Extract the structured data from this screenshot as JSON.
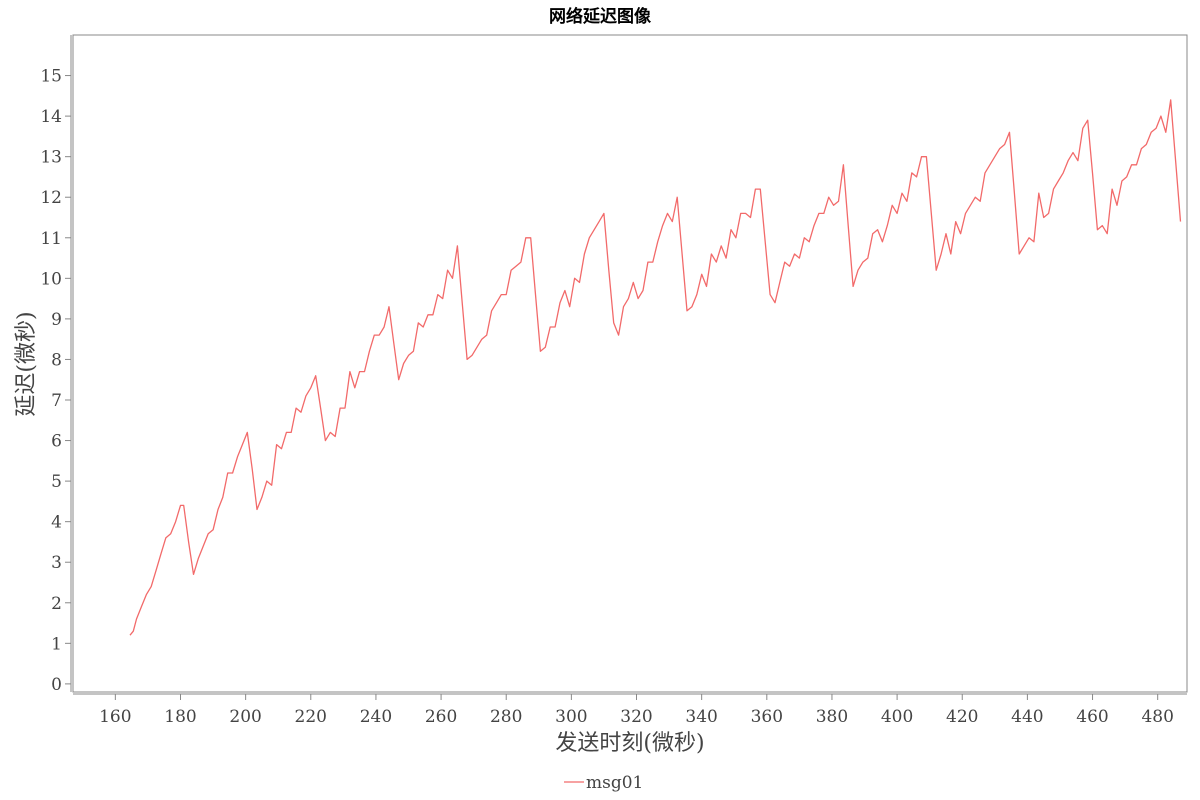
{
  "chart_data": {
    "type": "line",
    "title": "网络延迟图像",
    "xlabel": "发送时刻(微秒)",
    "ylabel": "延迟(微秒)",
    "xlim": [
      147,
      489
    ],
    "ylim": [
      -0.2,
      16.0
    ],
    "xticks": [
      160,
      180,
      200,
      220,
      240,
      260,
      280,
      300,
      320,
      340,
      360,
      380,
      400,
      420,
      440,
      460,
      480
    ],
    "yticks": [
      0,
      1,
      2,
      3,
      4,
      5,
      6,
      7,
      8,
      9,
      10,
      11,
      12,
      13,
      14,
      15
    ],
    "grid": false,
    "legend_position": "bottom-center",
    "series": [
      {
        "name": "msg01",
        "color": "#f26a6a",
        "points": [
          [
            164.5,
            1.2
          ],
          [
            165.5,
            1.3
          ],
          [
            166.5,
            1.6
          ],
          [
            168,
            1.9
          ],
          [
            169.5,
            2.2
          ],
          [
            171,
            2.4
          ],
          [
            172.5,
            2.8
          ],
          [
            174,
            3.2
          ],
          [
            175.5,
            3.6
          ],
          [
            177,
            3.7
          ],
          [
            178.5,
            4.0
          ],
          [
            180,
            4.4
          ],
          [
            181,
            4.4
          ],
          [
            182.5,
            3.5
          ],
          [
            184,
            2.7
          ],
          [
            185.5,
            3.1
          ],
          [
            187,
            3.4
          ],
          [
            188.5,
            3.7
          ],
          [
            190,
            3.8
          ],
          [
            191.5,
            4.3
          ],
          [
            193,
            4.6
          ],
          [
            194.5,
            5.2
          ],
          [
            196,
            5.2
          ],
          [
            197.5,
            5.6
          ],
          [
            199,
            5.9
          ],
          [
            200.5,
            6.2
          ],
          [
            202,
            5.3
          ],
          [
            203.5,
            4.3
          ],
          [
            205,
            4.6
          ],
          [
            206.5,
            5.0
          ],
          [
            208,
            4.9
          ],
          [
            209.5,
            5.9
          ],
          [
            211,
            5.8
          ],
          [
            212.5,
            6.2
          ],
          [
            214,
            6.2
          ],
          [
            215.5,
            6.8
          ],
          [
            217,
            6.7
          ],
          [
            218.5,
            7.1
          ],
          [
            220,
            7.3
          ],
          [
            221.5,
            7.6
          ],
          [
            223,
            6.8
          ],
          [
            224.5,
            6.0
          ],
          [
            226,
            6.2
          ],
          [
            227.5,
            6.1
          ],
          [
            229,
            6.8
          ],
          [
            230.5,
            6.8
          ],
          [
            232,
            7.7
          ],
          [
            233.5,
            7.3
          ],
          [
            235,
            7.7
          ],
          [
            236.5,
            7.7
          ],
          [
            238,
            8.2
          ],
          [
            239.5,
            8.6
          ],
          [
            241,
            8.6
          ],
          [
            242.5,
            8.8
          ],
          [
            244,
            9.3
          ],
          [
            245.5,
            8.4
          ],
          [
            247,
            7.5
          ],
          [
            248.5,
            7.9
          ],
          [
            250,
            8.1
          ],
          [
            251.5,
            8.2
          ],
          [
            253,
            8.9
          ],
          [
            254.5,
            8.8
          ],
          [
            256,
            9.1
          ],
          [
            257.5,
            9.1
          ],
          [
            259,
            9.6
          ],
          [
            260.5,
            9.5
          ],
          [
            262,
            10.2
          ],
          [
            263.5,
            10.0
          ],
          [
            265,
            10.8
          ],
          [
            266.5,
            9.4
          ],
          [
            268,
            8.0
          ],
          [
            269.5,
            8.1
          ],
          [
            271,
            8.3
          ],
          [
            272.5,
            8.5
          ],
          [
            274,
            8.6
          ],
          [
            275.5,
            9.2
          ],
          [
            277,
            9.4
          ],
          [
            278.5,
            9.6
          ],
          [
            280,
            9.6
          ],
          [
            281.5,
            10.2
          ],
          [
            283,
            10.3
          ],
          [
            284.5,
            10.4
          ],
          [
            286,
            11.0
          ],
          [
            287.5,
            11.0
          ],
          [
            289,
            9.6
          ],
          [
            290.5,
            8.2
          ],
          [
            292,
            8.3
          ],
          [
            293.5,
            8.8
          ],
          [
            295,
            8.8
          ],
          [
            296.5,
            9.4
          ],
          [
            298,
            9.7
          ],
          [
            299.5,
            9.3
          ],
          [
            301,
            10.0
          ],
          [
            302.5,
            9.9
          ],
          [
            304,
            10.6
          ],
          [
            305.5,
            11.0
          ],
          [
            307,
            11.2
          ],
          [
            308.5,
            11.4
          ],
          [
            310,
            11.6
          ],
          [
            311.5,
            10.2
          ],
          [
            313,
            8.9
          ],
          [
            314.5,
            8.6
          ],
          [
            316,
            9.3
          ],
          [
            317.5,
            9.5
          ],
          [
            319,
            9.9
          ],
          [
            320.5,
            9.5
          ],
          [
            322,
            9.7
          ],
          [
            323.5,
            10.4
          ],
          [
            325,
            10.4
          ],
          [
            326.5,
            10.9
          ],
          [
            328,
            11.3
          ],
          [
            329.5,
            11.6
          ],
          [
            331,
            11.4
          ],
          [
            332.5,
            12.0
          ],
          [
            334,
            10.6
          ],
          [
            335.5,
            9.2
          ],
          [
            337,
            9.3
          ],
          [
            338.5,
            9.6
          ],
          [
            340,
            10.1
          ],
          [
            341.5,
            9.8
          ],
          [
            343,
            10.6
          ],
          [
            344.5,
            10.4
          ],
          [
            346,
            10.8
          ],
          [
            347.5,
            10.5
          ],
          [
            349,
            11.2
          ],
          [
            350.5,
            11.0
          ],
          [
            352,
            11.6
          ],
          [
            353.5,
            11.6
          ],
          [
            355,
            11.5
          ],
          [
            356.5,
            12.2
          ],
          [
            358,
            12.2
          ],
          [
            359.5,
            10.9
          ],
          [
            361,
            9.6
          ],
          [
            362.5,
            9.4
          ],
          [
            364,
            9.9
          ],
          [
            365.5,
            10.4
          ],
          [
            367,
            10.3
          ],
          [
            368.5,
            10.6
          ],
          [
            370,
            10.5
          ],
          [
            371.5,
            11.0
          ],
          [
            373,
            10.9
          ],
          [
            374.5,
            11.3
          ],
          [
            376,
            11.6
          ],
          [
            377.5,
            11.6
          ],
          [
            379,
            12.0
          ],
          [
            380.5,
            11.8
          ],
          [
            382,
            11.9
          ],
          [
            383.5,
            12.8
          ],
          [
            385,
            11.3
          ],
          [
            386.5,
            9.8
          ],
          [
            388,
            10.2
          ],
          [
            389.5,
            10.4
          ],
          [
            391,
            10.5
          ],
          [
            392.5,
            11.1
          ],
          [
            394,
            11.2
          ],
          [
            395.5,
            10.9
          ],
          [
            397,
            11.3
          ],
          [
            398.5,
            11.8
          ],
          [
            400,
            11.6
          ],
          [
            401.5,
            12.1
          ],
          [
            403,
            11.9
          ],
          [
            404.5,
            12.6
          ],
          [
            406,
            12.5
          ],
          [
            407.5,
            13.0
          ],
          [
            409,
            13.0
          ],
          [
            410.5,
            11.6
          ],
          [
            412,
            10.2
          ],
          [
            413.5,
            10.6
          ],
          [
            415,
            11.1
          ],
          [
            416.5,
            10.6
          ],
          [
            418,
            11.4
          ],
          [
            419.5,
            11.1
          ],
          [
            421,
            11.6
          ],
          [
            422.5,
            11.8
          ],
          [
            424,
            12.0
          ],
          [
            425.5,
            11.9
          ],
          [
            427,
            12.6
          ],
          [
            428.5,
            12.8
          ],
          [
            430,
            13.0
          ],
          [
            431.5,
            13.2
          ],
          [
            433,
            13.3
          ],
          [
            434.5,
            13.6
          ],
          [
            436,
            12.1
          ],
          [
            437.5,
            10.6
          ],
          [
            439,
            10.8
          ],
          [
            440.5,
            11.0
          ],
          [
            442,
            10.9
          ],
          [
            443.5,
            12.1
          ],
          [
            445,
            11.5
          ],
          [
            446.5,
            11.6
          ],
          [
            448,
            12.2
          ],
          [
            449.5,
            12.4
          ],
          [
            451,
            12.6
          ],
          [
            452.5,
            12.9
          ],
          [
            454,
            13.1
          ],
          [
            455.5,
            12.9
          ],
          [
            457,
            13.7
          ],
          [
            458.5,
            13.9
          ],
          [
            460,
            12.6
          ],
          [
            461.5,
            11.2
          ],
          [
            463,
            11.3
          ],
          [
            464.5,
            11.1
          ],
          [
            466,
            12.2
          ],
          [
            467.5,
            11.8
          ],
          [
            469,
            12.4
          ],
          [
            470.5,
            12.5
          ],
          [
            472,
            12.8
          ],
          [
            473.5,
            12.8
          ],
          [
            475,
            13.2
          ],
          [
            476.5,
            13.3
          ],
          [
            478,
            13.6
          ],
          [
            479.5,
            13.7
          ],
          [
            481,
            14.0
          ],
          [
            482.5,
            13.6
          ],
          [
            484,
            14.4
          ],
          [
            485.5,
            12.9
          ],
          [
            487,
            11.4
          ]
        ]
      }
    ]
  }
}
